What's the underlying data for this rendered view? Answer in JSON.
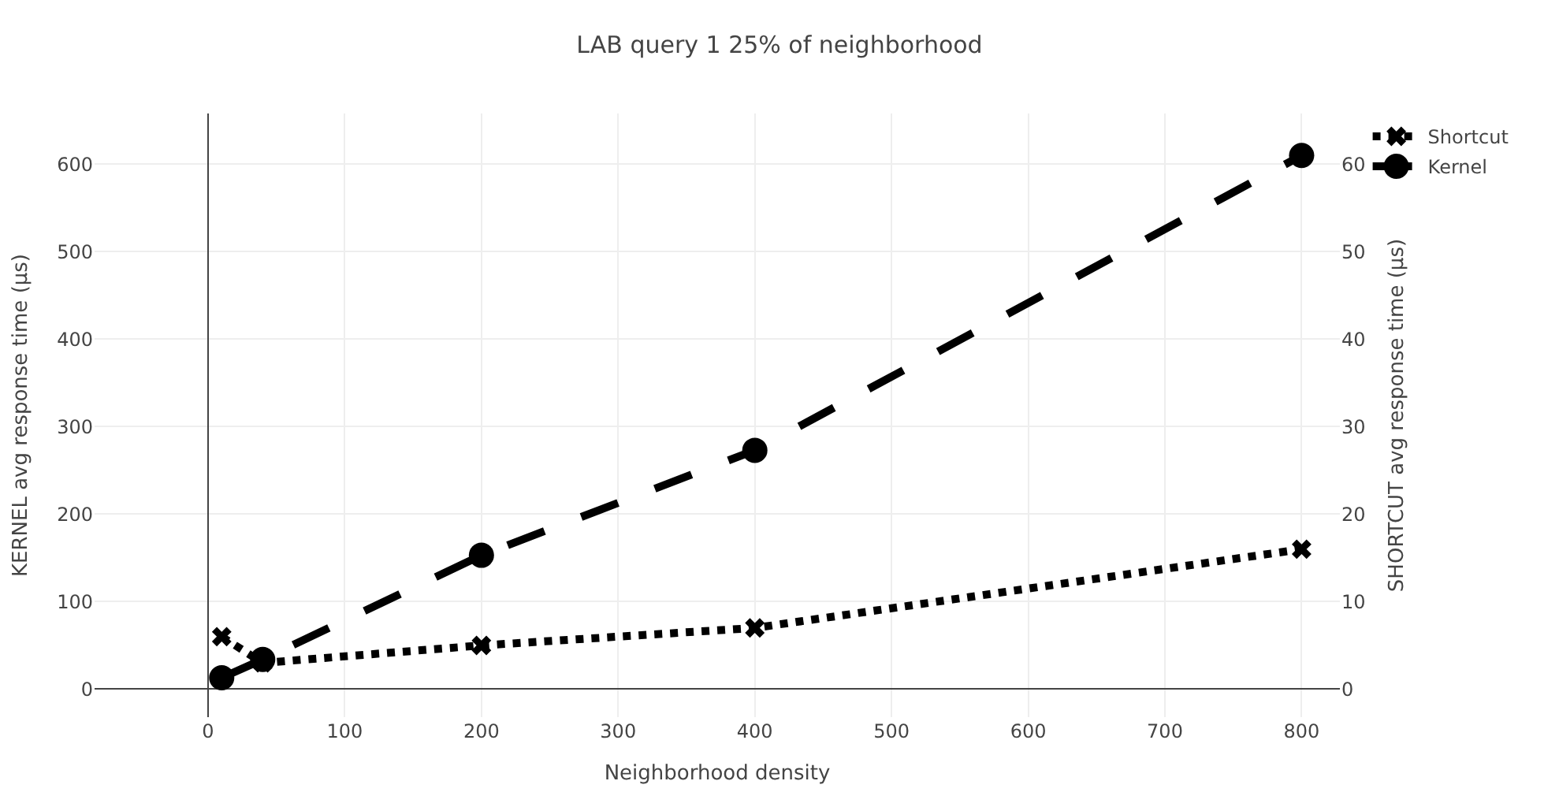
{
  "chart_data": {
    "type": "line",
    "title": "LAB query 1 25% of neighborhood",
    "xlabel": "Neighborhood density",
    "ylabel": "KERNEL avg response time (μs)",
    "y2label": "SHORTCUT avg response time (μs)",
    "x": [
      10,
      40,
      200,
      400,
      800
    ],
    "series": [
      {
        "name": "Shortcut",
        "color": "#000000",
        "axis": "y2",
        "marker": "cross",
        "line_style": "dotted",
        "values": [
          6,
          3,
          5,
          7,
          16
        ]
      },
      {
        "name": "Kernel",
        "color": "#000000",
        "marker": "circle",
        "line_style": "dashed",
        "values": [
          13,
          34,
          153,
          273,
          610
        ]
      }
    ],
    "xlim": [
      -83,
      828
    ],
    "xticks": [
      0,
      100,
      200,
      300,
      400,
      500,
      600,
      700,
      800
    ],
    "ylim": [
      -32,
      658
    ],
    "yticks": [
      0,
      100,
      200,
      300,
      400,
      500,
      600
    ],
    "y2lim": [
      -3.2,
      65.8
    ],
    "y2ticks": [
      0,
      10,
      20,
      30,
      40,
      50,
      60
    ],
    "grid": true,
    "legend": "top right"
  }
}
